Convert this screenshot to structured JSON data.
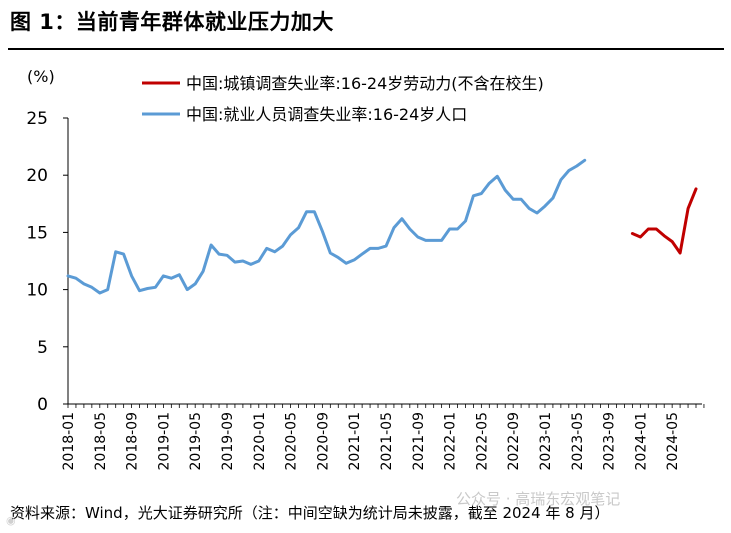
{
  "header": {
    "title": "图 1：当前青年群体就业压力加大"
  },
  "footer": {
    "source": "资料来源：Wind，光大证券研究所（注：中间空缺为统计局未披露，截至 2024 年 8 月）",
    "watermark": "公众号 · 高瑞东宏观笔记"
  },
  "chart_data": {
    "type": "line",
    "ylabel": "(%)",
    "ylim": [
      0,
      25
    ],
    "yticks": [
      0,
      5,
      10,
      15,
      20,
      25
    ],
    "xtick_labels": [
      "2018-01",
      "2018-05",
      "2018-09",
      "2019-01",
      "2019-05",
      "2019-09",
      "2020-01",
      "2020-05",
      "2020-09",
      "2021-01",
      "2021-05",
      "2021-09",
      "2022-01",
      "2022-05",
      "2022-09",
      "2023-01",
      "2023-05",
      "2023-09",
      "2024-01",
      "2024-05"
    ],
    "x_start": "2018-01",
    "x_end": "2024-08",
    "legend_position": "top",
    "series": [
      {
        "name": "中国:城镇调查失业率:16-24岁劳动力(不含在校生)",
        "color": "#c00000",
        "start": "2023-12",
        "values": [
          14.9,
          14.6,
          15.3,
          15.3,
          14.7,
          14.2,
          13.2,
          17.1,
          18.8
        ]
      },
      {
        "name": "中国:就业人员调查失业率:16-24岁人口",
        "color": "#5b9bd5",
        "start": "2018-01",
        "values": [
          11.2,
          11.0,
          10.5,
          10.2,
          9.7,
          10.0,
          13.3,
          13.1,
          11.2,
          9.9,
          10.1,
          10.2,
          11.2,
          11.0,
          11.3,
          10.0,
          10.5,
          11.6,
          13.9,
          13.1,
          13.0,
          12.4,
          12.5,
          12.2,
          12.5,
          13.6,
          13.3,
          13.8,
          14.8,
          15.4,
          16.8,
          16.8,
          15.1,
          13.2,
          12.8,
          12.3,
          12.6,
          13.1,
          13.6,
          13.6,
          13.8,
          15.4,
          16.2,
          15.3,
          14.6,
          14.3,
          14.3,
          14.3,
          15.3,
          15.3,
          16.0,
          18.2,
          18.4,
          19.3,
          19.9,
          18.7,
          17.9,
          17.9,
          17.1,
          16.7,
          17.3,
          18.0,
          19.6,
          20.4,
          20.8,
          21.3
        ]
      }
    ]
  }
}
